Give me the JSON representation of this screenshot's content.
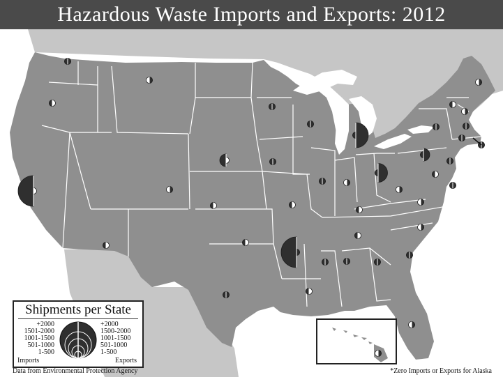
{
  "title": "Hazardous Waste Imports and Exports: 2012",
  "legend": {
    "title": "Shipments per State",
    "import_label": "Imports",
    "export_label": "Exports",
    "import_classes": [
      "+2000",
      "1501-2000",
      "1001-1500",
      "501-1000",
      "1-500"
    ],
    "export_classes": [
      "+2000",
      "1500-2000",
      "1001-1500",
      "501-1000",
      "1-500"
    ]
  },
  "source": "Data from Environmental Protection Agency",
  "note": "*Zero Imports or Exports for Alaska",
  "colors": {
    "title_bar": "#4a4a4a",
    "land": "#8f8f8f",
    "neighbor_land": "#c6c6c6",
    "water": "#ffffff",
    "state_border": "#ffffff",
    "symbol_fill": "#2f2f2f",
    "symbol_stroke": "#1e1e1e"
  },
  "map_data": {
    "symbol_key": "left half = imports class, right half = exports class; class index 0 = none, 1 = 1-500, 2 = 501-1000, 3 = 1001-1500, 4 = 1501-2000, 5 = +2000",
    "states": [
      {
        "name": "Washington",
        "imports": 1,
        "exports": 1
      },
      {
        "name": "Oregon",
        "imports": 1,
        "exports": 0
      },
      {
        "name": "California",
        "imports": 5,
        "exports": 0
      },
      {
        "name": "Montana",
        "imports": 0,
        "exports": 1
      },
      {
        "name": "Arizona",
        "imports": 1,
        "exports": 0
      },
      {
        "name": "Colorado",
        "imports": 0,
        "exports": 1
      },
      {
        "name": "Nebraska",
        "imports": 2,
        "exports": 0
      },
      {
        "name": "Kansas",
        "imports": 1,
        "exports": 0
      },
      {
        "name": "Oklahoma",
        "imports": 1,
        "exports": 0
      },
      {
        "name": "Texas",
        "imports": 1,
        "exports": 1
      },
      {
        "name": "Minnesota",
        "imports": 1,
        "exports": 1
      },
      {
        "name": "Wisconsin",
        "imports": 1,
        "exports": 1
      },
      {
        "name": "Iowa",
        "imports": 1,
        "exports": 1
      },
      {
        "name": "Missouri",
        "imports": 1,
        "exports": 0
      },
      {
        "name": "Arkansas",
        "imports": 5,
        "exports": 1
      },
      {
        "name": "Louisiana",
        "imports": 1,
        "exports": 0
      },
      {
        "name": "Illinois",
        "imports": 1,
        "exports": 1
      },
      {
        "name": "Indiana",
        "imports": 0,
        "exports": 1
      },
      {
        "name": "Michigan",
        "imports": 1,
        "exports": 4
      },
      {
        "name": "Ohio",
        "imports": 1,
        "exports": 3
      },
      {
        "name": "Kentucky",
        "imports": 1,
        "exports": 0
      },
      {
        "name": "Tennessee",
        "imports": 1,
        "exports": 0
      },
      {
        "name": "Mississippi",
        "imports": 1,
        "exports": 1
      },
      {
        "name": "Alabama",
        "imports": 1,
        "exports": 1
      },
      {
        "name": "Georgia",
        "imports": 1,
        "exports": 1
      },
      {
        "name": "Florida",
        "imports": 0,
        "exports": 1
      },
      {
        "name": "South Carolina",
        "imports": 1,
        "exports": 1
      },
      {
        "name": "North Carolina",
        "imports": 0,
        "exports": 1
      },
      {
        "name": "Virginia",
        "imports": 0,
        "exports": 1
      },
      {
        "name": "West Virginia",
        "imports": 0,
        "exports": 1
      },
      {
        "name": "Pennsylvania",
        "imports": 1,
        "exports": 2
      },
      {
        "name": "New York",
        "imports": 1,
        "exports": 1
      },
      {
        "name": "New Jersey",
        "imports": 1,
        "exports": 1
      },
      {
        "name": "Maryland",
        "imports": 1,
        "exports": 0
      },
      {
        "name": "Delaware",
        "imports": 1,
        "exports": 1
      },
      {
        "name": "Vermont",
        "imports": 1,
        "exports": 0
      },
      {
        "name": "New Hampshire",
        "imports": 0,
        "exports": 1
      },
      {
        "name": "Maine",
        "imports": 0,
        "exports": 1
      },
      {
        "name": "Massachusetts",
        "imports": 1,
        "exports": 1
      },
      {
        "name": "Connecticut",
        "imports": 1,
        "exports": 1
      },
      {
        "name": "Rhode Island",
        "imports": 1,
        "exports": 1
      },
      {
        "name": "Hawaii",
        "imports": 0,
        "exports": 1
      }
    ]
  }
}
